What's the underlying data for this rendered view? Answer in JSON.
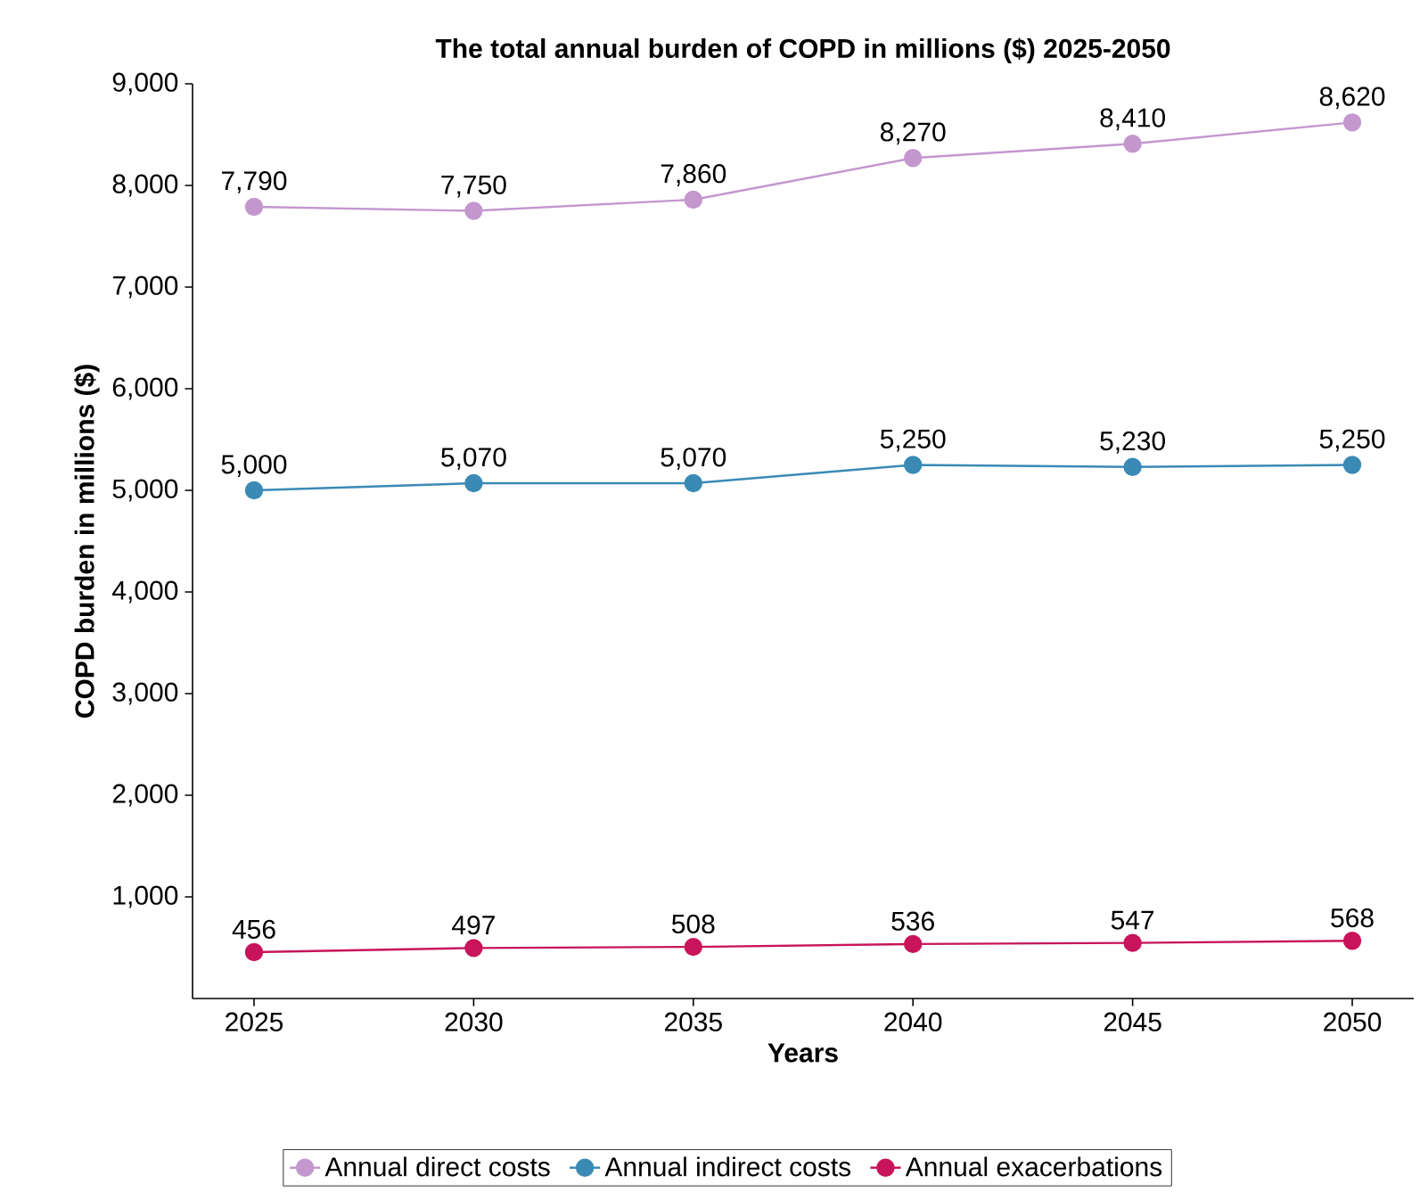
{
  "chart_data": {
    "type": "line",
    "title": "The total annual burden of COPD in millions ($) 2025-2050",
    "xlabel": "Years",
    "ylabel": "COPD burden in millions ($)",
    "x": [
      2025,
      2030,
      2035,
      2040,
      2045,
      2050
    ],
    "series": [
      {
        "name": "Annual direct costs",
        "color": "#c497cf",
        "values": [
          7790,
          7750,
          7860,
          8270,
          8410,
          8620
        ],
        "value_labels": [
          "7,790",
          "7,750",
          "7,860",
          "8,270",
          "8,410",
          "8,620"
        ]
      },
      {
        "name": "Annual indirect costs",
        "color": "#3a8ab5",
        "values": [
          5000,
          5070,
          5070,
          5250,
          5230,
          5250
        ],
        "value_labels": [
          "5,000",
          "5,070",
          "5,070",
          "5,250",
          "5,230",
          "5,250"
        ]
      },
      {
        "name": "Annual exacerbations",
        "color": "#c8145a",
        "values": [
          456,
          497,
          508,
          536,
          547,
          568
        ],
        "value_labels": [
          "456",
          "497",
          "508",
          "536",
          "547",
          "568"
        ]
      }
    ],
    "xlim": [
      2023.6,
      2051.4
    ],
    "xticks": [
      2025,
      2030,
      2035,
      2040,
      2045,
      2050
    ],
    "ylim": [
      0,
      9000
    ],
    "yticks": [
      {
        "value": 1000,
        "label": "1,000"
      },
      {
        "value": 2000,
        "label": "2,000"
      },
      {
        "value": 3000,
        "label": "3,000"
      },
      {
        "value": 4000,
        "label": "4,000"
      },
      {
        "value": 5000,
        "label": "5,000"
      },
      {
        "value": 6000,
        "label": "6,000"
      },
      {
        "value": 7000,
        "label": "7,000"
      },
      {
        "value": 8000,
        "label": "8,000"
      },
      {
        "value": 9000,
        "label": "9,000"
      }
    ],
    "legend": "bottom",
    "marker": "circle",
    "line_style": "solid",
    "grid": false
  }
}
